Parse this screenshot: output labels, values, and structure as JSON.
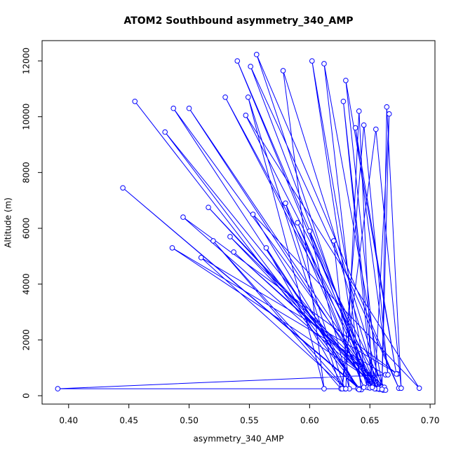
{
  "chart_data": {
    "type": "line",
    "markers": true,
    "title": "ATOM2 Southbound asymmetry_340_AMP",
    "x_label": "asymmetry_340_AMP",
    "y_label": "Altitude (m)",
    "color": "#0000ff",
    "grid": false,
    "x": [
      0.455,
      0.64,
      0.487,
      0.657,
      0.5,
      0.652,
      0.48,
      0.642,
      0.445,
      0.642,
      0.391,
      0.663,
      0.486,
      0.66,
      0.53,
      0.656,
      0.54,
      0.652,
      0.551,
      0.674,
      0.556,
      0.648,
      0.602,
      0.643,
      0.612,
      0.661,
      0.578,
      0.612,
      0.549,
      0.626,
      0.52,
      0.63,
      0.51,
      0.673,
      0.495,
      0.658,
      0.516,
      0.655,
      0.534,
      0.662,
      0.537,
      0.663,
      0.547,
      0.691,
      0.553,
      0.641,
      0.564,
      0.629,
      0.58,
      0.645,
      0.59,
      0.65,
      0.6,
      0.633,
      0.62,
      0.657,
      0.63,
      0.672,
      0.638,
      0.665,
      0.645,
      0.627,
      0.655,
      0.676,
      0.664,
      0.66,
      0.666,
      0.654,
      0.628,
      0.652,
      0.641,
      0.63
    ],
    "values": [
      10550,
      250,
      10300,
      250,
      10300,
      300,
      9450,
      220,
      7450,
      250,
      250,
      750,
      5300,
      300,
      10700,
      250,
      12000,
      300,
      11800,
      270,
      12230,
      300,
      12000,
      220,
      11900,
      200,
      11650,
      250,
      10700,
      250,
      5550,
      250,
      4950,
      780,
      6400,
      230,
      6750,
      250,
      5700,
      300,
      5150,
      200,
      10050,
      270,
      6500,
      220,
      5300,
      250,
      6900,
      300,
      6200,
      280,
      5900,
      250,
      5550,
      250,
      11300,
      780,
      9600,
      750,
      9700,
      250,
      9550,
      270,
      10350,
      230,
      10100,
      250,
      10550,
      300,
      10200,
      250
    ],
    "xlim": [
      0.378,
      0.704
    ],
    "xticks": [
      {
        "value": 0.4,
        "label": "0.40"
      },
      {
        "value": 0.45,
        "label": "0.45"
      },
      {
        "value": 0.5,
        "label": "0.50"
      },
      {
        "value": 0.55,
        "label": "0.55"
      },
      {
        "value": 0.6,
        "label": "0.60"
      },
      {
        "value": 0.65,
        "label": "0.65"
      },
      {
        "value": 0.7,
        "label": "0.70"
      }
    ],
    "ylim": [
      -300,
      12728
    ],
    "yticks": [
      0,
      2000,
      4000,
      6000,
      8000,
      10000,
      12000
    ]
  }
}
